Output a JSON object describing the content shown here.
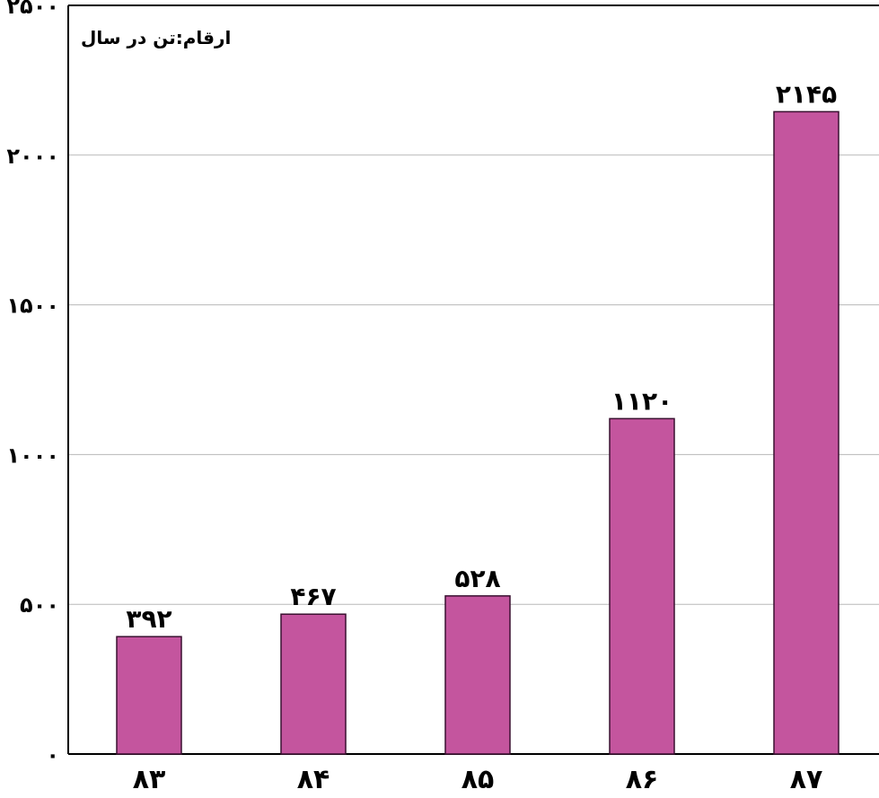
{
  "chart_data": {
    "type": "bar",
    "unit_note": "ارقام:تن در سال",
    "categories": [
      "۸۳",
      "۸۴",
      "۸۵",
      "۸۶",
      "۸۷"
    ],
    "values": [
      392,
      467,
      528,
      1120,
      2145
    ],
    "value_labels": [
      "۳۹۲",
      "۴۶۷",
      "۵۲۸",
      "۱۱۲۰",
      "۲۱۴۵"
    ],
    "ylim": [
      0,
      2500
    ],
    "y_ticks": [
      0,
      500,
      1000,
      1500,
      2000,
      2500
    ],
    "y_tick_labels": [
      "۰",
      "۵۰۰",
      "۱۰۰۰",
      "۱۵۰۰",
      "۲۰۰۰",
      "۲۵۰۰"
    ],
    "grid": true,
    "colors": {
      "bar": "#c4559e",
      "bar_stroke": "#3a1030",
      "grid": "#b8b8b8",
      "axis": "#000000",
      "text": "#000000"
    }
  }
}
